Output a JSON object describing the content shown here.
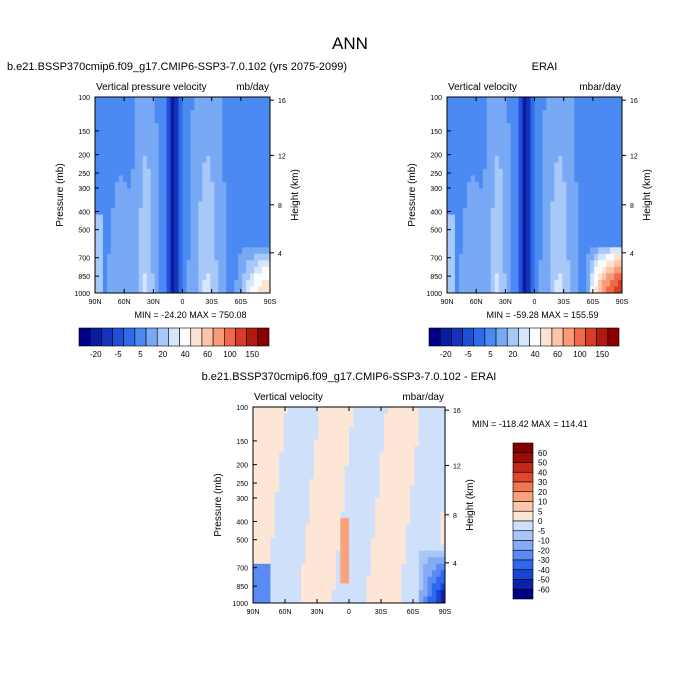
{
  "page": {
    "title": "ANN"
  },
  "colors": {
    "cmap_top": [
      "#00008b",
      "#0a1ca0",
      "#1433b8",
      "#1f4fd6",
      "#2e6be8",
      "#4a8af2",
      "#78a9f5",
      "#a8c8fa",
      "#d6e6fc",
      "#fcfcfc",
      "#fde4d2",
      "#fcc4a8",
      "#fa9a78",
      "#f06a4a",
      "#d63c28",
      "#b01a10",
      "#8b0000"
    ],
    "cmap_diff": [
      "#000080",
      "#0a22a8",
      "#1a44d4",
      "#2e66ee",
      "#5a8af4",
      "#85aaf6",
      "#aac6f8",
      "#cfe0fb",
      "#fde6d6",
      "#fcc8a8",
      "#faa27c",
      "#f27650",
      "#e0482e",
      "#c42818",
      "#9b0c06",
      "#800000"
    ]
  },
  "chart_data": [
    {
      "type": "heatmap",
      "title": "b.e21.BSSP370cmip6.f09_g17.CMIP6-SSP3-7.0.102 (yrs 2075-2099)",
      "left_label": "Vertical pressure velocity",
      "right_label": "mb/day",
      "xlabel": "",
      "ylabel": "Pressure (mb)",
      "ylabel_right": "Height (km)",
      "x_ticks": [
        "90N",
        "60N",
        "30N",
        "0",
        "30S",
        "60S",
        "90S"
      ],
      "y_ticks": [
        "100",
        "150",
        "200",
        "250",
        "300",
        "400",
        "500",
        "700",
        "850",
        "1000"
      ],
      "y_ticks_right": [
        "16",
        "12",
        "8",
        "4"
      ],
      "stats": "MIN = -24.20  MAX = 750.08",
      "colorbar_labels": [
        "-20",
        "-5",
        "5",
        "20",
        "40",
        "60",
        "100",
        "150"
      ],
      "grid": false
    },
    {
      "type": "heatmap",
      "title": "ERAI",
      "left_label": "Vertical velocity",
      "right_label": "mbar/day",
      "xlabel": "",
      "ylabel": "Pressure (mb)",
      "ylabel_right": "Height (km)",
      "x_ticks": [
        "90N",
        "60N",
        "30N",
        "0",
        "30S",
        "60S",
        "90S"
      ],
      "y_ticks": [
        "100",
        "150",
        "200",
        "250",
        "300",
        "400",
        "500",
        "700",
        "850",
        "1000"
      ],
      "y_ticks_right": [
        "16",
        "12",
        "8",
        "4"
      ],
      "stats": "MIN = -59.28  MAX = 155.59",
      "colorbar_labels": [
        "-20",
        "-5",
        "5",
        "20",
        "40",
        "60",
        "100",
        "150"
      ],
      "grid": false
    },
    {
      "type": "heatmap",
      "title": "b.e21.BSSP370cmip6.f09_g17.CMIP6-SSP3-7.0.102 - ERAI",
      "left_label": "Vertical velocity",
      "right_label": "mbar/day",
      "xlabel": "",
      "ylabel": "Pressure (mb)",
      "ylabel_right": "Height (km)",
      "x_ticks": [
        "90N",
        "60N",
        "30N",
        "0",
        "30S",
        "60S",
        "90S"
      ],
      "y_ticks": [
        "100",
        "150",
        "200",
        "250",
        "300",
        "400",
        "500",
        "700",
        "850",
        "1000"
      ],
      "y_ticks_right": [
        "16",
        "12",
        "8",
        "4"
      ],
      "stats": "MIN = -118.42  MAX = 114.41",
      "colorbar_labels": [
        "60",
        "50",
        "40",
        "30",
        "20",
        "10",
        "5",
        "0",
        "-5",
        "-10",
        "-20",
        "-30",
        "-40",
        "-50",
        "-60"
      ],
      "grid": false
    }
  ]
}
